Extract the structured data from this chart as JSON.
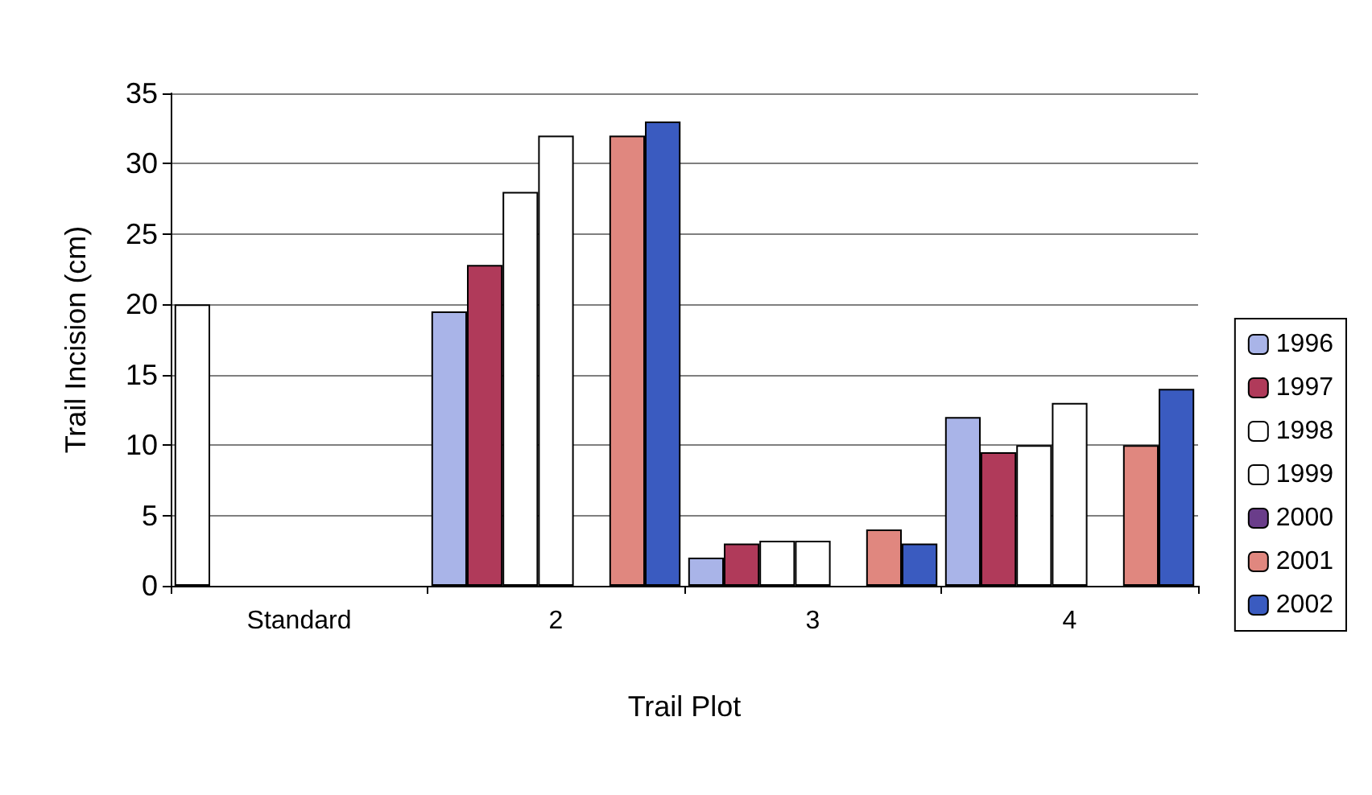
{
  "chart_data": {
    "type": "bar",
    "xlabel": "Trail Plot",
    "ylabel": "Trail Incision (cm)",
    "categories": [
      "Standard",
      "2",
      "3",
      "4"
    ],
    "series": [
      {
        "name": "1996",
        "color": "#a9b4e8",
        "colors": [
          "#ffffff",
          "#a9b4e8",
          "#a9b4e8",
          "#a9b4e8"
        ],
        "values": [
          20,
          19.5,
          2,
          12
        ]
      },
      {
        "name": "1997",
        "color": "#b03a5a",
        "values": [
          null,
          22.8,
          3,
          9.5
        ]
      },
      {
        "name": "1998",
        "color": "#ffffff",
        "values": [
          null,
          28,
          3.2,
          10
        ]
      },
      {
        "name": "1999",
        "color": "#ffffff",
        "values": [
          null,
          32,
          3.2,
          13
        ]
      },
      {
        "name": "2000",
        "color": "#6a3d8a",
        "values": [
          null,
          null,
          null,
          null
        ]
      },
      {
        "name": "2001",
        "color": "#e0877f",
        "values": [
          null,
          32,
          4,
          10
        ]
      },
      {
        "name": "2002",
        "color": "#3a5bc0",
        "values": [
          null,
          33,
          3,
          14
        ]
      }
    ],
    "ylim": [
      0,
      35
    ],
    "yticks": [
      0,
      5,
      10,
      15,
      20,
      25,
      30,
      35
    ],
    "grid": "y",
    "legend": "right"
  }
}
